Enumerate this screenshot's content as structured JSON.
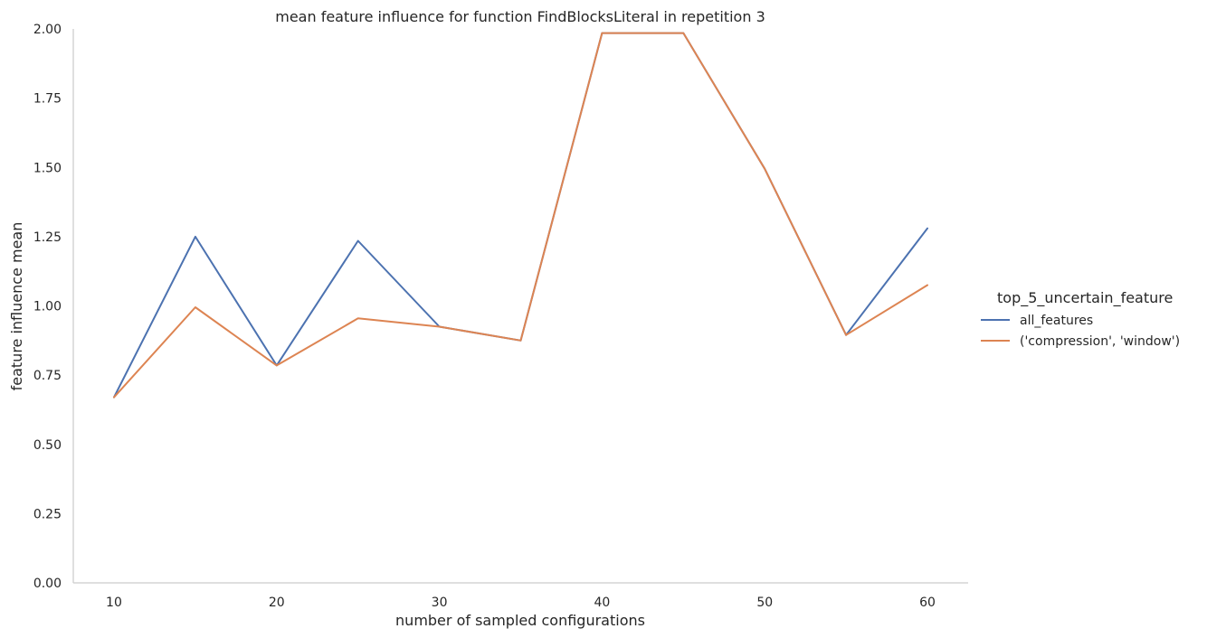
{
  "chart_data": {
    "type": "line",
    "title": "mean feature influence for function FindBlocksLiteral in repetition 3",
    "xlabel": "number of sampled configurations",
    "ylabel": "feature influence mean",
    "xlim": [
      7.5,
      62.5
    ],
    "ylim": [
      0,
      2.0
    ],
    "x": [
      10,
      15,
      20,
      25,
      30,
      35,
      40,
      45,
      50,
      55,
      60
    ],
    "x_ticks": [
      10,
      20,
      30,
      40,
      50,
      60
    ],
    "x_tick_labels": [
      "10",
      "20",
      "30",
      "40",
      "50",
      "60"
    ],
    "y_ticks": [
      0,
      0.25,
      0.5,
      0.75,
      1.0,
      1.25,
      1.5,
      1.75,
      2.0
    ],
    "y_tick_labels": [
      "0.00",
      "0.25",
      "0.50",
      "0.75",
      "1.00",
      "1.25",
      "1.50",
      "1.75",
      "2.00"
    ],
    "grid": false,
    "legend": {
      "title": "top_5_uncertain_feature",
      "position": "right"
    },
    "series": [
      {
        "name": "all_features",
        "color": "#4c72b0",
        "values": [
          0.67,
          1.25,
          0.785,
          1.235,
          0.925,
          0.875,
          1.985,
          1.985,
          1.495,
          0.895,
          1.28
        ]
      },
      {
        "name": "('compression', 'window')",
        "color": "#dd8452",
        "values": [
          0.67,
          0.995,
          0.785,
          0.955,
          0.925,
          0.875,
          1.985,
          1.985,
          1.495,
          0.895,
          1.075
        ]
      }
    ]
  }
}
